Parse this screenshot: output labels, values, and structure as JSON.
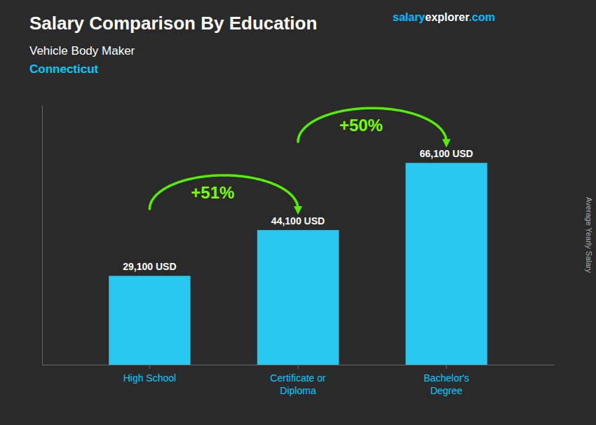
{
  "chart_data": {
    "type": "bar",
    "title": "Salary Comparison By Education",
    "subtitle": "Vehicle Body Maker",
    "location": "Connecticut",
    "watermark": [
      {
        "text": "salary",
        "color": "#00bbff"
      },
      {
        "text": "explorer",
        "color": "#ffffff"
      },
      {
        "text": ".com",
        "color": "#00bbff"
      }
    ],
    "y_label": "Average Yearly Salary",
    "categories": [
      "High School",
      "Certificate or\nDiploma",
      "Bachelor's\nDegree"
    ],
    "values": [
      29100,
      44100,
      66100
    ],
    "value_labels": [
      "29,100 USD",
      "44,100 USD",
      "66,100 USD"
    ],
    "data_labels": true,
    "annotations": [
      "+51%",
      "+50%"
    ],
    "color": "#29c8f0",
    "ylim": [
      0,
      85000
    ],
    "tick_labels": "x",
    "grid": false
  }
}
